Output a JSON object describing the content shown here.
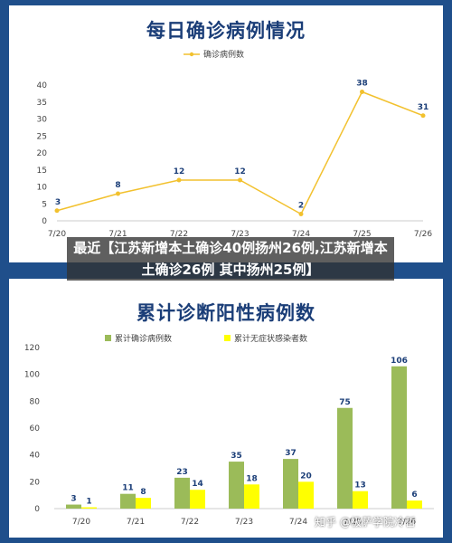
{
  "headline": "最近【江苏新增本土确诊40例扬州26例,江苏新增本土确诊26例 其中扬州25例】",
  "watermark": "知乎 @极萨学院冷哲",
  "colors": {
    "background": "#1f4f8b",
    "line": "#f2c12e",
    "bar_cumulative": "#9bbb59",
    "bar_asymptomatic": "#ffff00"
  },
  "chart_data": [
    {
      "type": "line",
      "title": "每日确诊病例情况",
      "series": [
        {
          "name": "确诊病例数",
          "values": [
            3,
            8,
            12,
            12,
            2,
            38,
            31
          ]
        }
      ],
      "categories": [
        "7/20",
        "7/21",
        "7/22",
        "7/23",
        "7/24",
        "7/25",
        "7/26"
      ],
      "ylim": [
        0,
        40
      ],
      "yticks": [
        0,
        5,
        10,
        15,
        20,
        25,
        30,
        35,
        40
      ],
      "legend": "top-center",
      "grid": false
    },
    {
      "type": "bar",
      "title": "累计诊断阳性病例数",
      "categories": [
        "7/20",
        "7/21",
        "7/22",
        "7/23",
        "7/24",
        "7/25",
        "7/26"
      ],
      "series": [
        {
          "name": "累计确诊病例数",
          "values": [
            3,
            11,
            23,
            35,
            37,
            75,
            106
          ]
        },
        {
          "name": "累计无症状感染者数",
          "values": [
            1,
            8,
            14,
            18,
            20,
            13,
            6
          ]
        }
      ],
      "ylim": [
        0,
        120
      ],
      "yticks": [
        0,
        20,
        40,
        60,
        80,
        100,
        120
      ],
      "legend": "top-center",
      "grid": false
    }
  ]
}
